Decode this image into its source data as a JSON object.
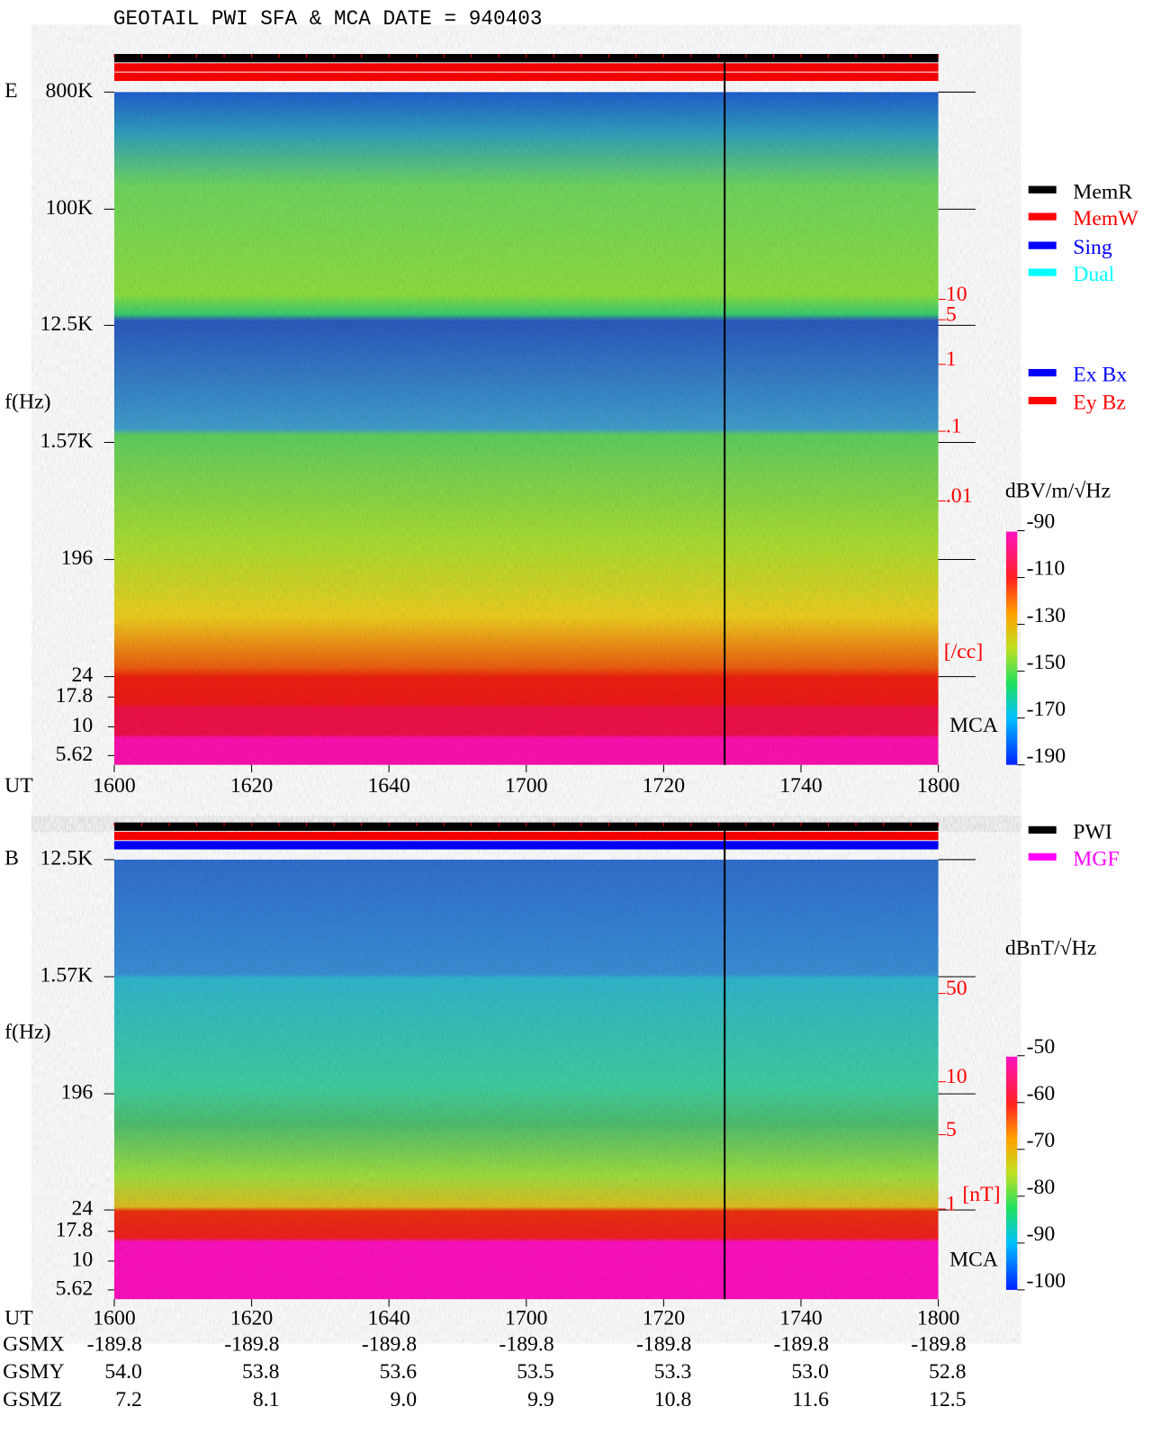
{
  "title": "GEOTAIL  PWI SFA & MCA   DATE = 940403",
  "panels": [
    {
      "label": "E",
      "y_axis_label": "f(Hz)",
      "freq_ticks": [
        "800K",
        "100K",
        "12.5K",
        "1.57K",
        "196",
        "24",
        "17.8",
        "10",
        "5.62"
      ],
      "density_ticks": [
        "10",
        "5",
        "1",
        ".1",
        ".01"
      ],
      "density_unit": "[/cc]",
      "mca_label": "MCA",
      "x_axis_label": "UT",
      "time_ticks": [
        "1600",
        "1620",
        "1640",
        "1700",
        "1720",
        "1740",
        "1800"
      ],
      "legend": [
        {
          "name": "MemR",
          "color": "#000000"
        },
        {
          "name": "MemW",
          "color": "#ff0000"
        },
        {
          "name": "Sing",
          "color": "#0000ff"
        },
        {
          "name": "Dual",
          "color": "#00ffff"
        },
        {
          "name": "Ex Bx",
          "color": "#0000ff"
        },
        {
          "name": "Ey Bz",
          "color": "#ff0000"
        }
      ],
      "colorbar": {
        "unit": "dBV/m/√Hz",
        "ticks": [
          -90,
          -110,
          -130,
          -150,
          -170,
          -190
        ]
      }
    },
    {
      "label": "B",
      "y_axis_label": "f(Hz)",
      "freq_ticks": [
        "12.5K",
        "1.57K",
        "196",
        "24",
        "17.8",
        "10",
        "5.62"
      ],
      "density_ticks": [
        "50",
        "10",
        "5",
        "1"
      ],
      "density_unit": "[nT]",
      "mca_label": "MCA",
      "x_axis_label": "UT",
      "time_ticks": [
        "1600",
        "1620",
        "1640",
        "1700",
        "1720",
        "1740",
        "1800"
      ],
      "legend": [
        {
          "name": "PWI",
          "color": "#000000"
        },
        {
          "name": "MGF",
          "color": "#ff00ff"
        }
      ],
      "colorbar": {
        "unit": "dBnT/√Hz",
        "ticks": [
          -50,
          -60,
          -70,
          -80,
          -90,
          -100
        ]
      }
    }
  ],
  "orbit": [
    {
      "label": "GSMX",
      "values": [
        "-189.8",
        "-189.8",
        "-189.8",
        "-189.8",
        "-189.8",
        "-189.8",
        "-189.8"
      ]
    },
    {
      "label": "GSMY",
      "values": [
        "54.0",
        "53.8",
        "53.6",
        "53.5",
        "53.3",
        "53.0",
        "52.8"
      ]
    },
    {
      "label": "GSMZ",
      "values": [
        "7.2",
        "8.1",
        "9.0",
        "9.9",
        "10.8",
        "11.6",
        "12.5"
      ]
    }
  ]
}
